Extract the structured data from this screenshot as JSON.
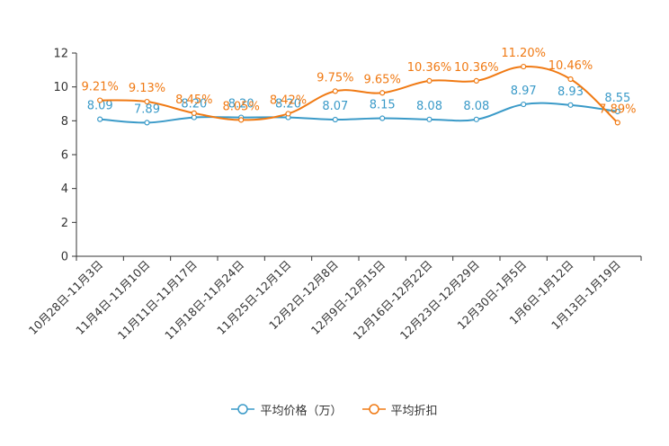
{
  "chart_data": {
    "type": "line",
    "title": "",
    "xlabel": "",
    "ylabel": "",
    "ylim": [
      0,
      12
    ],
    "yticks": [
      0,
      2,
      4,
      6,
      8,
      10,
      12
    ],
    "categories": [
      "10月28日-11月3日",
      "11月4日-11月10日",
      "11月11日-11月17日",
      "11月18日-11月24日",
      "11月25日-12月1日",
      "12月2日-12月8日",
      "12月9日-12月15日",
      "12月16日-12月22日",
      "12月23日-12月29日",
      "12月30日-1月5日",
      "1月6日-1月12日",
      "1月13日-1月19日"
    ],
    "series": [
      {
        "name": "平均价格（万）",
        "color": "#3a9ac8",
        "values": [
          8.09,
          7.89,
          8.2,
          8.2,
          8.2,
          8.07,
          8.15,
          8.08,
          8.08,
          8.97,
          8.93,
          8.55
        ],
        "labels": [
          "8.09",
          "7.89",
          "8.20",
          "8.20",
          "8.20",
          "8.07",
          "8.15",
          "8.08",
          "8.08",
          "8.97",
          "8.93",
          "8.55"
        ]
      },
      {
        "name": "平均折扣",
        "color": "#f07a14",
        "values": [
          9.21,
          9.13,
          8.45,
          8.05,
          8.42,
          9.75,
          9.65,
          10.36,
          10.36,
          11.2,
          10.46,
          7.89
        ],
        "labels": [
          "9.21%",
          "9.13%",
          "8.45%",
          "8.05%",
          "8.42%",
          "9.75%",
          "9.65%",
          "10.36%",
          "10.36%",
          "11.20%",
          "10.46%",
          "7.89%"
        ]
      }
    ],
    "legend_position": "bottom-center",
    "grid": false
  }
}
